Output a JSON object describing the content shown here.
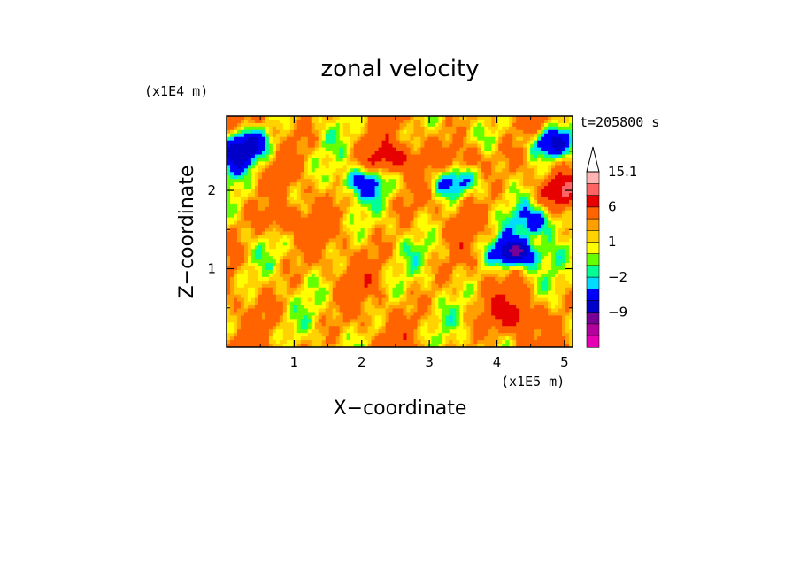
{
  "chart_data": {
    "type": "heatmap",
    "title": "zonal velocity",
    "xlabel": "X−coordinate",
    "ylabel": "Z−coordinate",
    "x_unit": "(x1E5 m)",
    "y_unit": "(x1E4 m)",
    "time_label": "t=205800 s",
    "xlim": [
      0,
      5.12
    ],
    "ylim": [
      0,
      2.95
    ],
    "x_ticks": [
      "1",
      "2",
      "3",
      "4",
      "5"
    ],
    "y_ticks": [
      "1",
      "2"
    ],
    "colorbar": {
      "levels": [
        -15,
        -12,
        -9,
        -6,
        -3,
        -2,
        -1,
        0,
        1,
        2,
        3,
        6,
        9,
        12,
        15.1
      ],
      "colors": [
        "#e800b4",
        "#b4009c",
        "#780096",
        "#0000c8",
        "#0000ff",
        "#00dcff",
        "#00ff96",
        "#64ff00",
        "#ffff00",
        "#ffd200",
        "#ffa000",
        "#ff6400",
        "#e60000",
        "#ff6464",
        "#ffb4b4",
        "#ffffff"
      ],
      "labels": [
        "15.1",
        "6",
        "1",
        "−2",
        "−9"
      ]
    },
    "features": [
      {
        "x": 0.3,
        "z": 2.6,
        "value": -9
      },
      {
        "x": 0.1,
        "z": 2.4,
        "value": -6
      },
      {
        "x": 4.8,
        "z": 2.6,
        "value": -9
      },
      {
        "x": 4.25,
        "z": 1.2,
        "value": -12
      },
      {
        "x": 2.0,
        "z": 2.1,
        "value": -6
      },
      {
        "x": 3.3,
        "z": 2.1,
        "value": -6
      },
      {
        "x": 4.6,
        "z": 1.6,
        "value": -6
      },
      {
        "x": 2.4,
        "z": 2.4,
        "value": 6
      },
      {
        "x": 3.6,
        "z": 2.4,
        "value": 4
      },
      {
        "x": 4.9,
        "z": 2.0,
        "value": 5
      },
      {
        "x": 0.8,
        "z": 1.6,
        "value": 4
      },
      {
        "x": 4.25,
        "z": 0.4,
        "value": 5
      },
      {
        "x": 0.8,
        "z": 0.6,
        "value": 0
      },
      {
        "x": 3.0,
        "z": 1.2,
        "value": -1
      },
      {
        "x": 2.0,
        "z": 0.9,
        "value": 1
      }
    ]
  }
}
